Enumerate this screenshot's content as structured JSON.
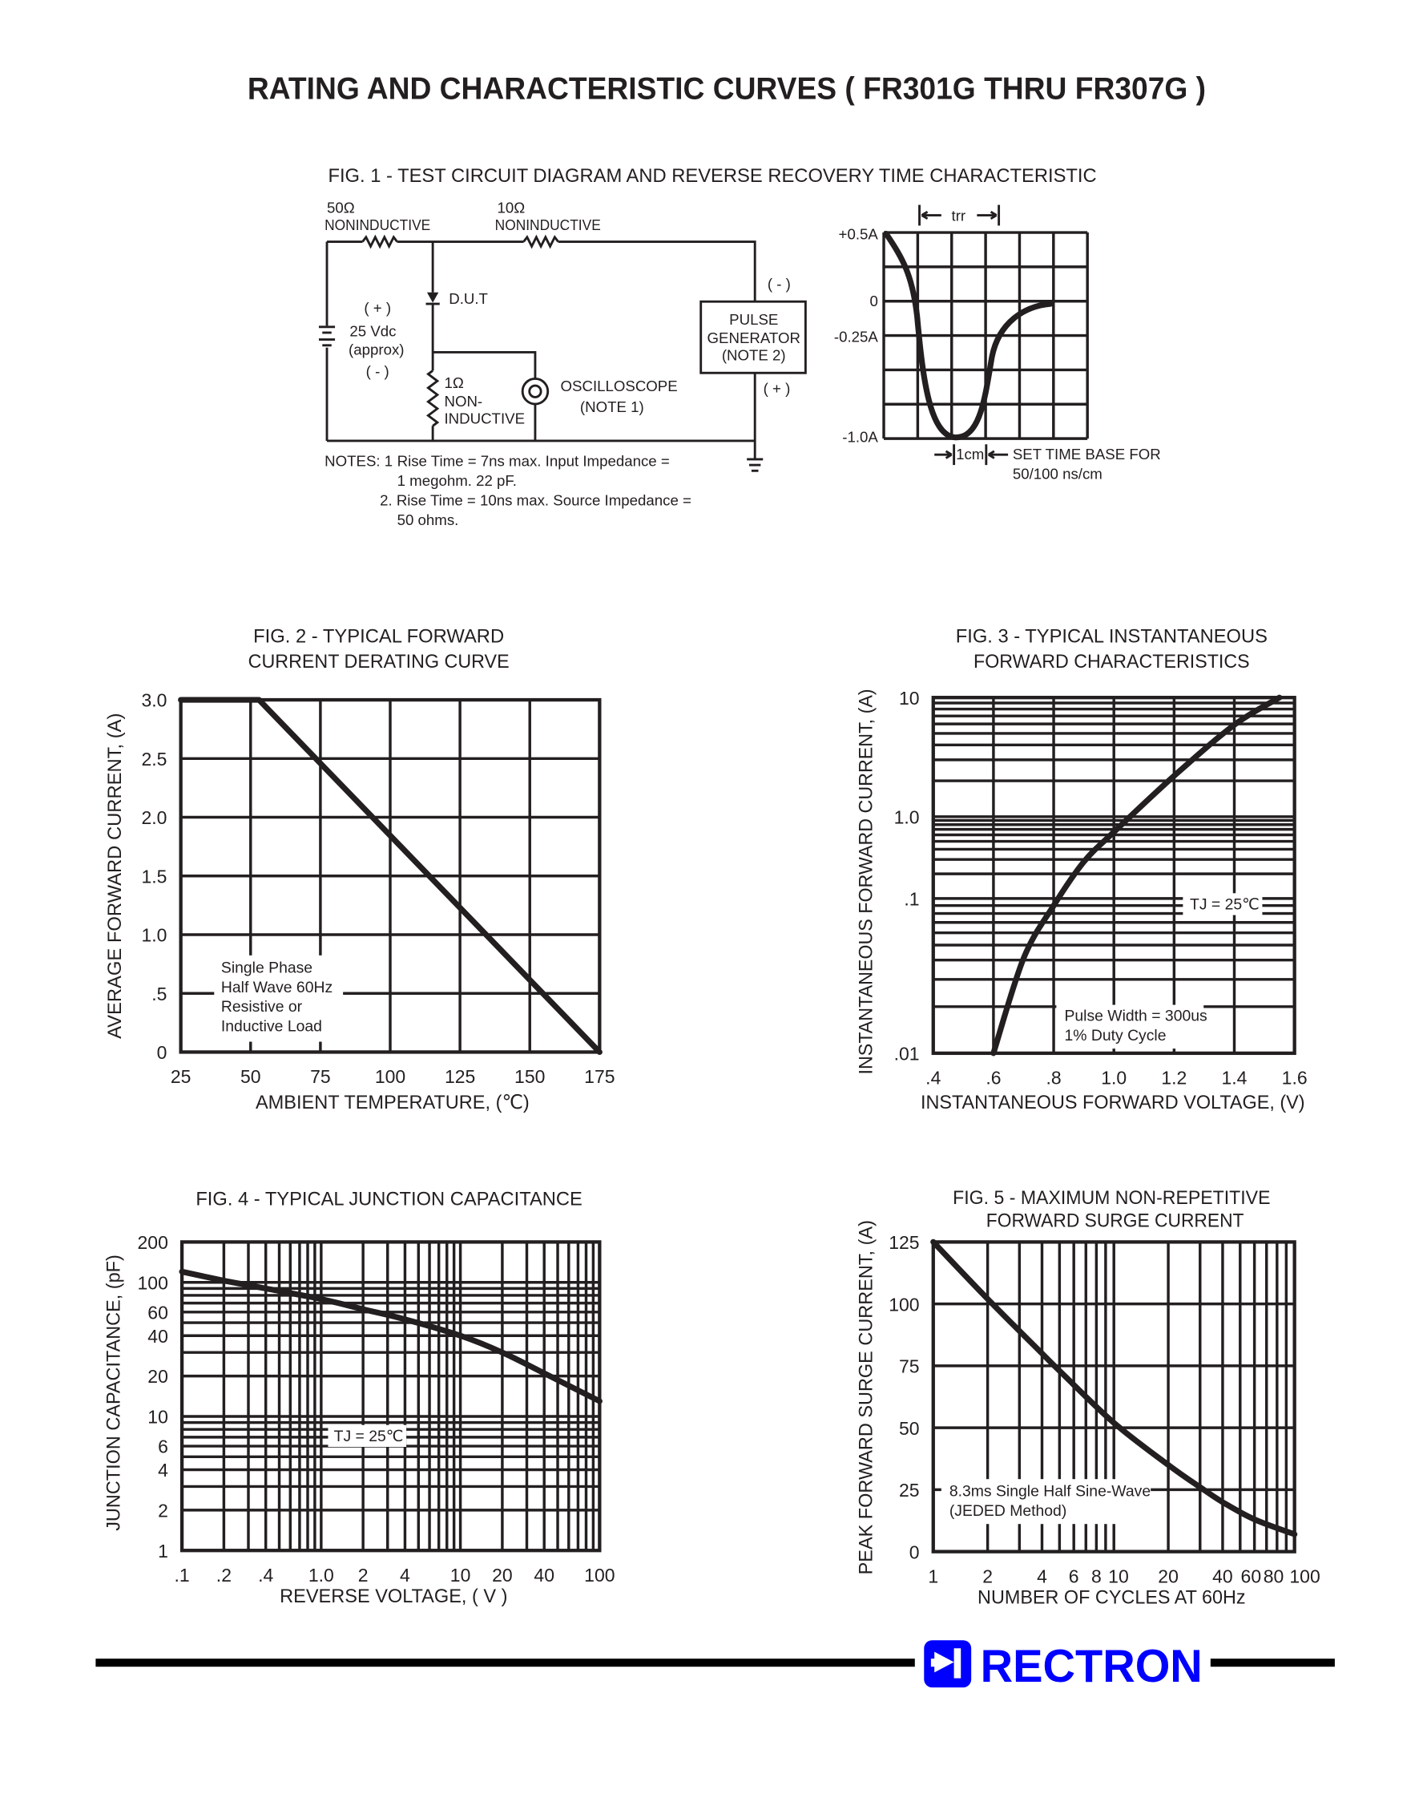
{
  "header": {
    "title": "RATING AND CHARACTERISTIC CURVES ( FR301G THRU FR307G )"
  },
  "colors": {
    "ink": "#231f20",
    "brand": "#0000ff"
  },
  "fig1": {
    "title": "FIG. 1 - TEST CIRCUIT DIAGRAM  AND REVERSE RECOVERY TIME CHARACTERISTIC",
    "r1_value": "50Ω",
    "r1_label": "NONINDUCTIVE",
    "r2_value": "10Ω",
    "r2_label": "NONINDUCTIVE",
    "dut_label": "D.U.T",
    "battery_plus": "( + )",
    "battery_value": "25 Vdc",
    "battery_approx": "(approx)",
    "battery_minus": "( - )",
    "r3_value": "1Ω",
    "r3_label_1": "NON-",
    "r3_label_2": "INDUCTIVE",
    "scope_label": "OSCILLOSCOPE",
    "scope_note": "(NOTE 1)",
    "pulse_label_1": "PULSE",
    "pulse_label_2": "GENERATOR",
    "pulse_label_3": "(NOTE 2)",
    "pulse_minus": "( - )",
    "pulse_plus": "( + )",
    "notes": {
      "heading": "NOTES: 1",
      "n1_line1": "Rise Time = 7ns max. Input Impedance =",
      "n1_line2": "1 megohm. 22 pF.",
      "n2_line1": "2. Rise Time = 10ns max. Source Impedance =",
      "n2_line2": "50 ohms."
    },
    "waveform": {
      "trr_label": "trr",
      "y_labels": [
        "+0.5A",
        "0",
        "-0.25A",
        "-1.0A"
      ],
      "cm_label": "1cm",
      "timebase_line1": "SET TIME BASE FOR",
      "timebase_line2": "50/100 ns/cm"
    }
  },
  "chart_data": [
    {
      "type": "line",
      "title": [
        "FIG. 2 - TYPICAL FORWARD",
        "CURRENT DERATING CURVE"
      ],
      "xlabel": "AMBIENT TEMPERATURE, (℃)",
      "ylabel": "AVERAGE FORWARD  CURRENT, (A)",
      "xscale": "linear",
      "yscale": "linear",
      "xlim": [
        25,
        175
      ],
      "ylim": [
        0,
        3.0
      ],
      "xticks": [
        25,
        50,
        75,
        100,
        125,
        150,
        175
      ],
      "xtick_labels": [
        "25",
        "50",
        "75",
        "100",
        "125",
        "150",
        "175"
      ],
      "yticks": [
        0,
        0.5,
        1.0,
        1.5,
        2.0,
        2.5,
        3.0
      ],
      "ytick_labels": [
        "0",
        ".5",
        "1.0",
        "1.5",
        "2.0",
        "2.5",
        "3.0"
      ],
      "grid": true,
      "series": [
        {
          "x": [
            25,
            53,
            175
          ],
          "y": [
            3.0,
            3.0,
            0
          ]
        }
      ],
      "annotation": [
        "Single Phase",
        "Half Wave 60Hz",
        "Resistive or",
        "Inductive Load"
      ]
    },
    {
      "type": "line",
      "title": [
        "FIG. 3 - TYPICAL INSTANTANEOUS",
        "FORWARD CHARACTERISTICS"
      ],
      "xlabel": "INSTANTANEOUS FORWARD VOLTAGE, (V)",
      "ylabel": "INSTANTANEOUS FORWARD CURRENT, (A)",
      "xscale": "linear",
      "yscale": "log",
      "xlim": [
        0.4,
        1.6
      ],
      "ylim": [
        0.01,
        10
      ],
      "xticks": [
        0.4,
        0.6,
        0.8,
        1.0,
        1.2,
        1.4,
        1.6
      ],
      "xtick_labels": [
        ".4",
        ".6",
        ".8",
        "1.0",
        "1.2",
        "1.4",
        "1.6"
      ],
      "yticks": [
        0.01,
        0.1,
        1.0,
        10
      ],
      "ytick_labels": [
        ".01",
        ".1",
        "1.0",
        "10"
      ],
      "grid": true,
      "series": [
        {
          "x": [
            0.6,
            0.7,
            0.8,
            0.9,
            1.0,
            1.2,
            1.4,
            1.55
          ],
          "y": [
            0.01,
            0.041,
            0.09,
            0.28,
            0.65,
            2.2,
            5.9,
            10
          ]
        }
      ],
      "annotation": [
        "TJ = 25℃"
      ],
      "annotation2": [
        "Pulse Width = 300us",
        "1% Duty Cycle"
      ]
    },
    {
      "type": "line",
      "title": [
        "FIG. 4 - TYPICAL JUNCTION CAPACITANCE"
      ],
      "xlabel": "REVERSE VOLTAGE, ( V )",
      "ylabel": "JUNCTION CAPACITANCE, (pF)",
      "xscale": "log",
      "yscale": "log",
      "xlim": [
        0.1,
        100
      ],
      "ylim": [
        1,
        200
      ],
      "xticks": [
        0.1,
        0.2,
        0.4,
        1.0,
        2,
        4,
        10,
        20,
        40,
        100
      ],
      "xtick_labels": [
        ".1",
        ".2",
        ".4",
        "1.0",
        "2",
        "4",
        "10",
        "20",
        "40",
        "100"
      ],
      "yticks": [
        1,
        2,
        4,
        6,
        10,
        20,
        40,
        60,
        100,
        200
      ],
      "ytick_labels": [
        "1",
        "2",
        "4",
        "6",
        "10",
        "20",
        "40",
        "60",
        "100",
        "200"
      ],
      "grid": true,
      "series": [
        {
          "x": [
            0.1,
            0.2,
            0.4,
            1.0,
            2,
            4,
            10,
            20,
            40,
            100
          ],
          "y": [
            120,
            103,
            90,
            75,
            63,
            53,
            40,
            30,
            21,
            13
          ]
        }
      ],
      "annotation": [
        "TJ = 25℃"
      ]
    },
    {
      "type": "line",
      "title": [
        "FIG. 5 - MAXIMUM NON-REPETITIVE",
        "FORWARD SURGE CURRENT"
      ],
      "xlabel": "NUMBER OF CYCLES AT 60Hz",
      "ylabel": "PEAK FORWARD SURGE CURRENT, (A)",
      "xscale": "log",
      "yscale": "linear",
      "xlim": [
        1,
        100
      ],
      "ylim": [
        0,
        125
      ],
      "xticks": [
        1,
        2,
        4,
        6,
        8,
        10,
        20,
        40,
        60,
        80,
        100
      ],
      "xtick_labels": [
        "1",
        "2",
        "4",
        "6",
        "8",
        "10",
        "20",
        "40",
        "60",
        "80",
        "100"
      ],
      "yticks": [
        0,
        25,
        50,
        75,
        100,
        125
      ],
      "ytick_labels": [
        "0",
        "25",
        "50",
        "75",
        "100",
        "125"
      ],
      "grid": true,
      "series": [
        {
          "x": [
            1,
            2,
            4,
            5,
            10,
            20,
            30,
            40,
            60,
            100
          ],
          "y": [
            125,
            102,
            80,
            73,
            52,
            35,
            26,
            20,
            13,
            7
          ]
        }
      ],
      "annotation": [
        "8.3ms Single Half Sine-Wave",
        "(JEDED Method)"
      ]
    }
  ],
  "footer": {
    "brand": "RECTRON"
  }
}
